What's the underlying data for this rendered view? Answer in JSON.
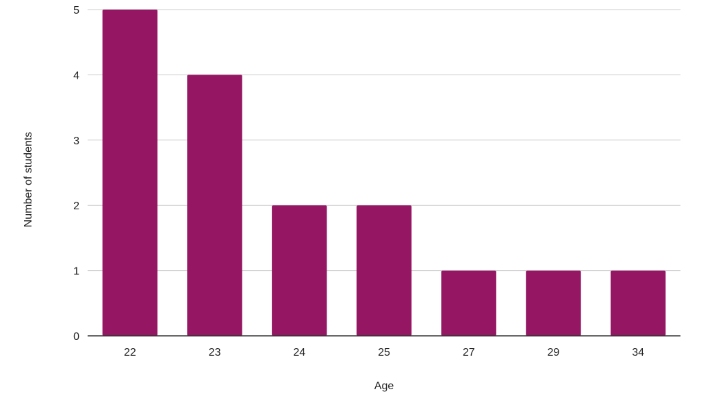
{
  "chart_data": {
    "type": "bar",
    "categories": [
      "22",
      "23",
      "24",
      "25",
      "27",
      "29",
      "34"
    ],
    "values": [
      5,
      4,
      2,
      2,
      1,
      1,
      1
    ],
    "xlabel": "Age",
    "ylabel": "Number of students",
    "ylim": [
      0,
      5
    ],
    "yticks": [
      "0",
      "1",
      "2",
      "3",
      "4",
      "5"
    ],
    "grid": true,
    "legend": "none",
    "colors": {
      "bar": "#951764",
      "grid": "#cccccc",
      "axis": "#333333"
    }
  }
}
